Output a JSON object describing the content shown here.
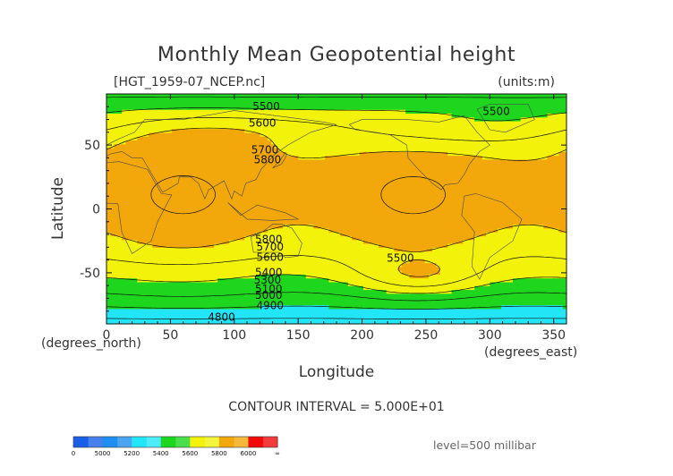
{
  "chart_data": {
    "type": "heatmap",
    "title": "Monthly Mean Geopotential height",
    "subtitle_left": "[HGT_1959-07_NCEP.nc]",
    "subtitle_right": "(units:m)",
    "xlabel": "Longitude",
    "ylabel": "Latitude",
    "x_unit_label": "(degrees_east)",
    "y_unit_label": "(degrees_north)",
    "xlim": [
      0,
      360
    ],
    "ylim": [
      -90,
      90
    ],
    "x_ticks": [
      0,
      50,
      100,
      150,
      200,
      250,
      300,
      350
    ],
    "y_ticks": [
      -50,
      0,
      50
    ],
    "contour_interval_text": "CONTOUR INTERVAL = 5.000E+01",
    "level_text": "level=500 millibar",
    "color_levels": [
      {
        "min": 0,
        "max": 5000,
        "color": "#1a5fe8"
      },
      {
        "min": 5000,
        "max": 5200,
        "color": "#1e8ef0"
      },
      {
        "min": 5200,
        "max": 5400,
        "color": "#22e6f8"
      },
      {
        "min": 5400,
        "max": 5600,
        "color": "#1ed61e"
      },
      {
        "min": 5600,
        "max": 5800,
        "color": "#f2f20a"
      },
      {
        "min": 5800,
        "max": 6000,
        "color": "#f2a70a"
      },
      {
        "min": 6000,
        "max": 99999,
        "color": "#f20a0a"
      }
    ],
    "colorbar_labels": [
      "0",
      "5000",
      "5200",
      "5400",
      "5600",
      "5800",
      "6000",
      "∞"
    ],
    "contour_labels": [
      {
        "text": "5500",
        "lon": 125,
        "lat": 80
      },
      {
        "text": "5600",
        "lon": 122,
        "lat": 67
      },
      {
        "text": "5700",
        "lon": 124,
        "lat": 46
      },
      {
        "text": "5800",
        "lon": 126,
        "lat": 38
      },
      {
        "text": "5500",
        "lon": 305,
        "lat": 76
      },
      {
        "text": "5800",
        "lon": 127,
        "lat": -24
      },
      {
        "text": "5700",
        "lon": 128,
        "lat": -30
      },
      {
        "text": "5600",
        "lon": 128,
        "lat": -38
      },
      {
        "text": "5500",
        "lon": 230,
        "lat": -39
      },
      {
        "text": "5400",
        "lon": 127,
        "lat": -50
      },
      {
        "text": "5300",
        "lon": 126,
        "lat": -56
      },
      {
        "text": "5100",
        "lon": 127,
        "lat": -63
      },
      {
        "text": "5000",
        "lon": 127,
        "lat": -68
      },
      {
        "text": "4900",
        "lon": 128,
        "lat": -76
      },
      {
        "text": "4800",
        "lon": 90,
        "lat": -85
      }
    ]
  }
}
